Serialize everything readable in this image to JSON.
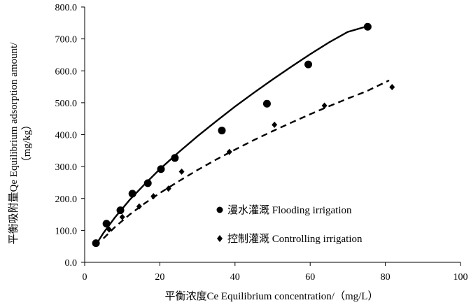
{
  "chart_data": {
    "type": "scatter",
    "xlabel": "平衡浓度Ce Equilibrium concentration/（mg/L）",
    "ylabel_line1": "平衡吸附量Qe Equilibrium adsorption amount/",
    "ylabel_line2": "（mg/kg）",
    "xlim": [
      0,
      100
    ],
    "ylim": [
      0,
      800
    ],
    "x_ticks": [
      0,
      20,
      40,
      60,
      80,
      100
    ],
    "x_tick_labels": [
      "0",
      "20",
      "40",
      "60",
      "80",
      "100"
    ],
    "y_ticks": [
      0,
      100,
      200,
      300,
      400,
      500,
      600,
      700,
      800
    ],
    "y_tick_labels": [
      "0.0",
      "100.0",
      "200.0",
      "300.0",
      "400.0",
      "500.0",
      "600.0",
      "700.0",
      "800.0"
    ],
    "grid": false,
    "legend_position": "lower-right",
    "series": [
      {
        "name": "漫水灌溉 Flooding irrigation",
        "marker": "circle",
        "line_style": "solid",
        "color": "#000000",
        "points": [
          [
            3,
            60
          ],
          [
            5.8,
            121
          ],
          [
            9.5,
            163
          ],
          [
            12.7,
            215
          ],
          [
            16.8,
            248
          ],
          [
            20.3,
            292
          ],
          [
            24,
            327
          ],
          [
            36.5,
            413
          ],
          [
            48.5,
            497
          ],
          [
            59.5,
            620
          ],
          [
            75.3,
            738
          ]
        ],
        "fit": [
          [
            3,
            55
          ],
          [
            5,
            92
          ],
          [
            8,
            140
          ],
          [
            12,
            196
          ],
          [
            16,
            245
          ],
          [
            20,
            292
          ],
          [
            25,
            345
          ],
          [
            30,
            395
          ],
          [
            35,
            442
          ],
          [
            40,
            488
          ],
          [
            45,
            531
          ],
          [
            50,
            573
          ],
          [
            55,
            613
          ],
          [
            60,
            652
          ],
          [
            65,
            689
          ],
          [
            70,
            722
          ],
          [
            75.3,
            740
          ]
        ]
      },
      {
        "name": "控制灌溉 Controlling irrigation",
        "marker": "diamond",
        "line_style": "dashed",
        "color": "#000000",
        "points": [
          [
            6.5,
            103
          ],
          [
            10,
            142
          ],
          [
            14.5,
            175
          ],
          [
            18.3,
            207
          ],
          [
            22.3,
            231
          ],
          [
            25.8,
            284
          ],
          [
            38.5,
            346
          ],
          [
            50.5,
            431
          ],
          [
            63.8,
            491
          ],
          [
            81.8,
            549
          ]
        ],
        "fit": [
          [
            5,
            75
          ],
          [
            8,
            110
          ],
          [
            12,
            150
          ],
          [
            16,
            185
          ],
          [
            20,
            217
          ],
          [
            25,
            254
          ],
          [
            30,
            289
          ],
          [
            35,
            322
          ],
          [
            40,
            353
          ],
          [
            45,
            383
          ],
          [
            50,
            411
          ],
          [
            55,
            438
          ],
          [
            60,
            464
          ],
          [
            65,
            489
          ],
          [
            70,
            513
          ],
          [
            75,
            536
          ],
          [
            81,
            570
          ]
        ]
      }
    ]
  }
}
